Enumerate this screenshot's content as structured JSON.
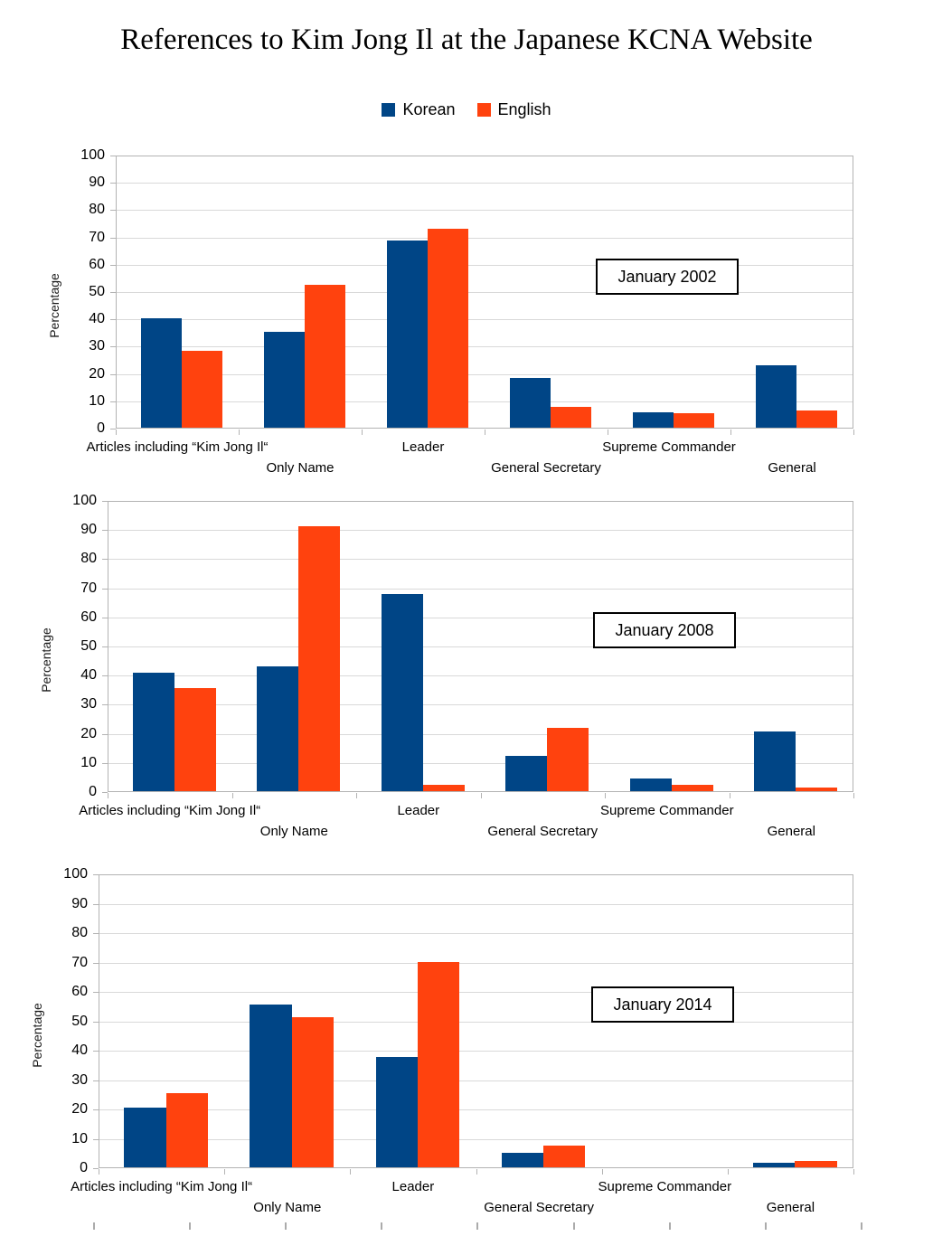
{
  "title": "References to Kim Jong Il at the Japanese KCNA Website",
  "legend": [
    {
      "label": "Korean",
      "color": "#004586"
    },
    {
      "label": "English",
      "color": "#FF420E"
    }
  ],
  "chart_data": [
    {
      "type": "bar",
      "label": "January 2002",
      "ylabel": "Percentage",
      "ylim": [
        0,
        100
      ],
      "y_ticks": [
        0,
        10,
        20,
        30,
        40,
        50,
        60,
        70,
        80,
        90,
        100
      ],
      "grid": true,
      "legend_position": "top-center",
      "categories": [
        "Articles including “Kim Jong Il“",
        "Only Name",
        "Leader",
        "General Secretary",
        "Supreme Commander",
        "General"
      ],
      "series": [
        {
          "name": "Korean",
          "color": "#004586",
          "values": [
            40.2,
            35.3,
            69.0,
            18.5,
            5.7,
            23.0
          ]
        },
        {
          "name": "English",
          "color": "#FF420E",
          "values": [
            28.3,
            52.6,
            73.5,
            7.8,
            5.2,
            6.5
          ]
        }
      ]
    },
    {
      "type": "bar",
      "label": "January 2008",
      "ylabel": "Percentage",
      "ylim": [
        0,
        100
      ],
      "y_ticks": [
        0,
        10,
        20,
        30,
        40,
        50,
        60,
        70,
        80,
        90,
        100
      ],
      "grid": true,
      "categories": [
        "Articles including “Kim Jong Il“",
        "Only Name",
        "Leader",
        "General Secretary",
        "Supreme Commander",
        "General"
      ],
      "series": [
        {
          "name": "Korean",
          "color": "#004586",
          "values": [
            41.0,
            43.0,
            68.2,
            12.3,
            4.4,
            20.5
          ]
        },
        {
          "name": "English",
          "color": "#FF420E",
          "values": [
            35.5,
            91.7,
            2.2,
            22.0,
            2.2,
            1.2
          ]
        }
      ]
    },
    {
      "type": "bar",
      "label": "January 2014",
      "ylabel": "Percentage",
      "ylim": [
        0,
        100
      ],
      "y_ticks": [
        0,
        10,
        20,
        30,
        40,
        50,
        60,
        70,
        80,
        90,
        100
      ],
      "grid": true,
      "categories": [
        "Articles including “Kim Jong Il“",
        "Only Name",
        "Leader",
        "General Secretary",
        "Supreme Commander",
        "General"
      ],
      "series": [
        {
          "name": "Korean",
          "color": "#004586",
          "values": [
            20.5,
            55.6,
            37.7,
            4.9,
            0,
            1.7
          ]
        },
        {
          "name": "English",
          "color": "#FF420E",
          "values": [
            25.4,
            51.4,
            70.3,
            7.3,
            0,
            2.2
          ]
        }
      ]
    }
  ]
}
